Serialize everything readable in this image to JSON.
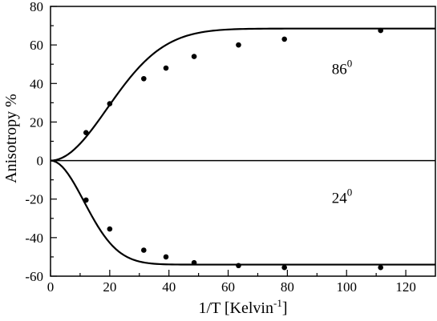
{
  "chart_data": {
    "type": "scatter",
    "title": "",
    "xlabel": {
      "text": "1/T [Kelvin",
      "sup": "-1",
      "suffix": "]"
    },
    "ylabel": "Anisotropy %",
    "xlim": [
      0,
      130
    ],
    "ylim": [
      -60,
      80
    ],
    "x_ticks": [
      0,
      20,
      40,
      60,
      80,
      100,
      120
    ],
    "y_ticks": [
      -60,
      -40,
      -20,
      0,
      20,
      40,
      60,
      80
    ],
    "grid": false,
    "legend": "none",
    "zero_line": true,
    "series": [
      {
        "points": {
          "x": [
            12,
            20,
            31.5,
            39,
            48.5,
            63.5,
            79,
            111.5
          ],
          "y": [
            14.5,
            29.5,
            42.5,
            48,
            54,
            60,
            63,
            67.5
          ]
        },
        "curve": {
          "model": "A*(1-exp(-(x/t)^2))",
          "A": 68.5,
          "t": 27
        },
        "label": {
          "text": "86",
          "sup": "0"
        }
      },
      {
        "points": {
          "x": [
            12,
            20,
            31.5,
            39,
            48.5,
            63.5,
            79,
            111.5
          ],
          "y": [
            -20.5,
            -35.5,
            -46.5,
            -50,
            -53,
            -54.5,
            -55.5,
            -55.5
          ]
        },
        "curve": {
          "model": "A*(1-exp(-(x/t)^2))",
          "A": -54,
          "t": 16
        },
        "label": {
          "text": "24",
          "sup": "0"
        }
      }
    ],
    "annotations": [
      {
        "series": 0,
        "x": 95,
        "y": 45
      },
      {
        "series": 1,
        "x": 95,
        "y": -22
      }
    ]
  }
}
